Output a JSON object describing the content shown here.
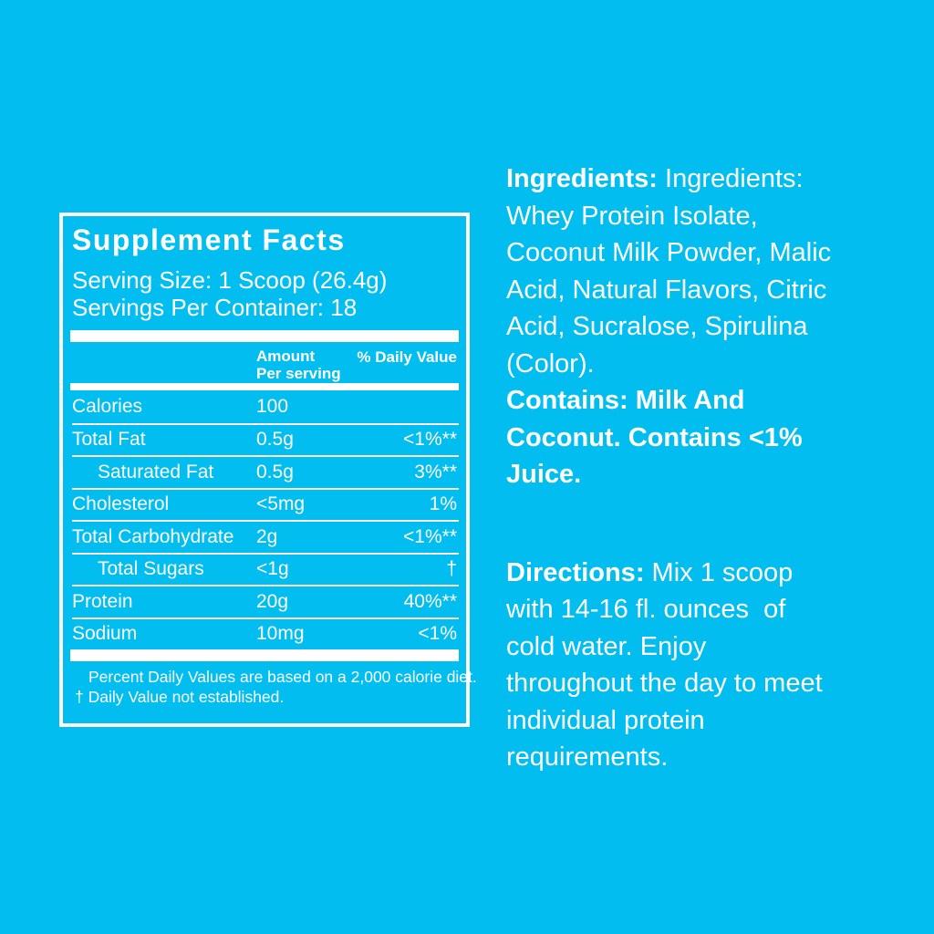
{
  "colors": {
    "background": "#02BEF0",
    "text": "#FFFFFF"
  },
  "supplement_facts": {
    "title": "Supplement Facts",
    "serving_size": "Serving Size: 1 Scoop (26.4g)",
    "servings_per_container": "Servings Per Container: 18",
    "columns": {
      "amount_line1": "Amount",
      "amount_line2": "Per serving",
      "daily_value": "% Daily Value"
    },
    "rows": [
      {
        "label": "Calories",
        "amount": "100",
        "daily_value": ""
      },
      {
        "label": "Total Fat",
        "amount": "0.5g",
        "daily_value": "<1%**"
      },
      {
        "label": "Saturated Fat",
        "amount": "0.5g",
        "daily_value": "3%**"
      },
      {
        "label": "Cholesterol",
        "amount": "<5mg",
        "daily_value": "1%"
      },
      {
        "label": "Total Carbohydrate",
        "amount": "2g",
        "daily_value": "<1%**"
      },
      {
        "label": "Total Sugars",
        "amount": "<1g",
        "daily_value": "†"
      },
      {
        "label": "Protein",
        "amount": "20g",
        "daily_value": "40%**"
      },
      {
        "label": "Sodium",
        "amount": "10mg",
        "daily_value": "<1%"
      }
    ],
    "footnotes": [
      "Percent Daily Values are based on a 2,000 calorie diet.",
      "† Daily Value not established."
    ]
  },
  "ingredients": {
    "label": "Ingredients:",
    "text": " Ingredients:\nWhey Protein Isolate,\nCoconut Milk Powder, Malic\nAcid, Natural Flavors, Citric\nAcid, Sucralose, Spirulina\n(Color).\n",
    "contains": "Contains: Milk And\nCoconut. Contains <1%\nJuice."
  },
  "directions": {
    "label": "Directions:",
    "text": " Mix 1 scoop\nwith 14-16 fl. ounces  of\ncold water. Enjoy\nthroughout the day to meet\nindividual protein\nrequirements."
  }
}
